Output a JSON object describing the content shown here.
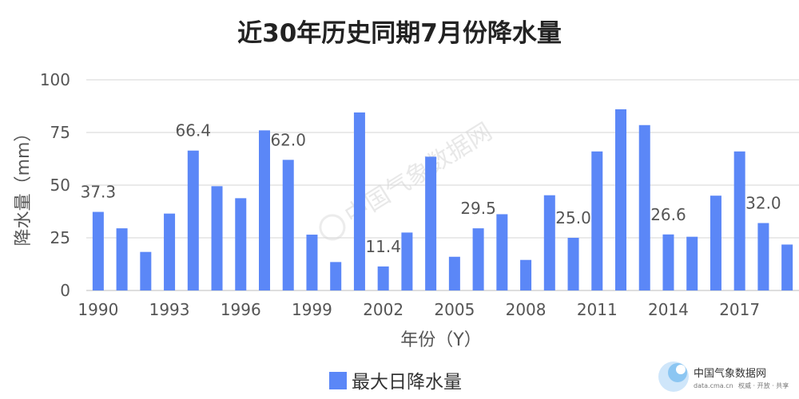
{
  "chart_data": {
    "type": "bar",
    "title": "近30年历史同期7月份降水量",
    "xlabel": "年份（Y）",
    "ylabel": "降水量（mm）",
    "ylim": [
      0,
      100
    ],
    "yticks": [
      0,
      25,
      50,
      75,
      100
    ],
    "grid": true,
    "legend_position": "bottom",
    "categories": [
      "1990",
      "1991",
      "1992",
      "1993",
      "1994",
      "1995",
      "1996",
      "1997",
      "1998",
      "1999",
      "2000",
      "2001",
      "2002",
      "2003",
      "2004",
      "2005",
      "2006",
      "2007",
      "2008",
      "2009",
      "2010",
      "2011",
      "2012",
      "2013",
      "2014",
      "2015",
      "2016",
      "2017",
      "2018",
      "2019"
    ],
    "x_tick_labels": [
      "1990",
      "1993",
      "1996",
      "1999",
      "2002",
      "2005",
      "2008",
      "2011",
      "2014",
      "2017"
    ],
    "series": [
      {
        "name": "最大日降水量",
        "color": "#5b87f7",
        "values": [
          37.3,
          29.5,
          18.3,
          36.5,
          66.4,
          49.5,
          43.8,
          76.0,
          62.0,
          26.5,
          13.5,
          84.5,
          11.4,
          27.5,
          63.5,
          16.0,
          29.5,
          36.2,
          14.5,
          45.2,
          25.0,
          66.0,
          86.0,
          78.5,
          26.6,
          25.5,
          45.0,
          66.0,
          32.0,
          21.8
        ]
      }
    ],
    "data_labels": [
      {
        "category": "1990",
        "text": "37.3"
      },
      {
        "category": "1994",
        "text": "66.4"
      },
      {
        "category": "1998",
        "text": "62.0"
      },
      {
        "category": "2002",
        "text": "11.4"
      },
      {
        "category": "2006",
        "text": "29.5"
      },
      {
        "category": "2010",
        "text": "25.0"
      },
      {
        "category": "2014",
        "text": "26.6"
      },
      {
        "category": "2018",
        "text": "32.0"
      }
    ]
  },
  "watermark": {
    "text": "中国气象数据网"
  },
  "logo": {
    "name_cn": "中国气象数据网",
    "domain": "data.cma.cn",
    "slogan": "权威 · 开放 · 共享",
    "icon": "cma-swirl-icon"
  }
}
